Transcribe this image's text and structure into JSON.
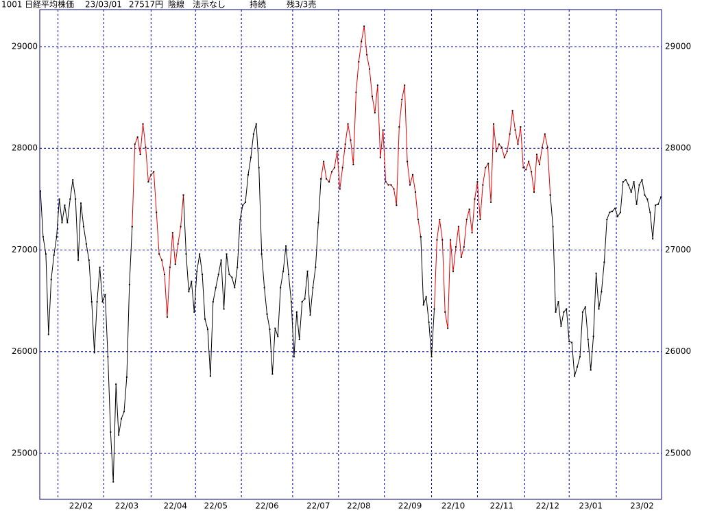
{
  "chart_data": {
    "type": "line",
    "header": [
      "1001",
      "日経平均株価",
      "23/03/01",
      "27517円",
      "陰線",
      "法示なし",
      "持続",
      "残3/3売"
    ],
    "categories": [
      null,
      null,
      null,
      null,
      null,
      null,
      null,
      null,
      null,
      null,
      null,
      null,
      null,
      null,
      null,
      "22/02",
      null,
      null,
      null,
      null,
      null,
      null,
      null,
      null,
      null,
      null,
      null,
      null,
      null,
      null,
      null,
      null,
      "22/03",
      null,
      null,
      null,
      null,
      null,
      null,
      null,
      null,
      null,
      null,
      null,
      null,
      null,
      null,
      null,
      null,
      null,
      "22/04",
      null,
      null,
      null,
      null,
      null,
      null,
      null,
      null,
      null,
      null,
      null,
      null,
      null,
      null,
      "22/05",
      null,
      null,
      null,
      null,
      null,
      null,
      null,
      null,
      null,
      null,
      null,
      null,
      null,
      null,
      null,
      null,
      null,
      null,
      "22/06",
      null,
      null,
      null,
      null,
      null,
      null,
      null,
      null,
      null,
      null,
      null,
      null,
      null,
      null,
      null,
      null,
      null,
      null,
      "22/07",
      null,
      null,
      null,
      null,
      null,
      null,
      null,
      null,
      null,
      null,
      null,
      null,
      null,
      null,
      "22/08",
      null,
      null,
      null,
      null,
      null,
      null,
      null,
      null,
      null,
      null,
      null,
      null,
      null,
      null,
      null,
      null,
      null,
      null,
      "22/09",
      null,
      null,
      null,
      null,
      null,
      null,
      null,
      null,
      null,
      null,
      null,
      null,
      null,
      null,
      null,
      "22/10",
      null,
      null,
      null,
      null,
      null,
      null,
      null,
      null,
      null,
      null,
      null,
      null,
      null,
      null,
      null,
      null,
      null,
      "22/11",
      null,
      null,
      null,
      null,
      null,
      null,
      null,
      null,
      null,
      null,
      null,
      null,
      null,
      null,
      null,
      null,
      "22/12",
      null,
      null,
      null,
      null,
      null,
      null,
      null,
      null,
      null,
      null,
      null,
      null,
      null,
      null,
      null,
      "23/01",
      null,
      null,
      null,
      null,
      null,
      null,
      null,
      null,
      null,
      null,
      null,
      null,
      null,
      null,
      null,
      null,
      null,
      null,
      "23/02",
      null,
      null,
      null,
      null,
      null,
      null,
      null
    ],
    "series": [
      {
        "color": "#000000",
        "values": [
          27580,
          27130,
          26960,
          26170,
          26710,
          26950,
          27130,
          27500,
          27270,
          27440,
          27270,
          27500,
          27690,
          27500,
          26900,
          27460,
          27230,
          27060,
          26900,
          26490,
          25990,
          26490,
          26830,
          26490,
          26560,
          25950,
          25210,
          24720,
          25680,
          25180,
          25340,
          25410,
          25750,
          26660,
          27230,
          null,
          null,
          null,
          null,
          null,
          null,
          null,
          null,
          null,
          null,
          null,
          null,
          null,
          null,
          null,
          null,
          null,
          null,
          27540,
          26960,
          26590,
          26690,
          26390,
          26790,
          26960,
          26760,
          26320,
          26220,
          25760,
          26490,
          26630,
          26760,
          26900,
          26420,
          26960,
          26760,
          26730,
          26630,
          26830,
          27300,
          27440,
          27470,
          27740,
          27910,
          28140,
          28240,
          27810,
          26960,
          26630,
          26370,
          26220,
          25780,
          26230,
          26150,
          26630,
          26790,
          27040,
          26760,
          26490,
          25950,
          26390,
          26120,
          26490,
          26520,
          26790,
          26360,
          26630,
          26830,
          27270,
          27700,
          null,
          null,
          null,
          null,
          null,
          null,
          null,
          null,
          null,
          null,
          null,
          null,
          null,
          null,
          null,
          null,
          null,
          null,
          null,
          null,
          null,
          null,
          null,
          null,
          null,
          null,
          null,
          null,
          null,
          null,
          null,
          null,
          null,
          null,
          null,
          null,
          27130,
          26460,
          26540,
          26290,
          25950,
          26420,
          null,
          null,
          null,
          null,
          null,
          null,
          null,
          null,
          null,
          null,
          null,
          null,
          null,
          null,
          null,
          null,
          null,
          null,
          null,
          null,
          null,
          null,
          null,
          null,
          null,
          null,
          null,
          null,
          null,
          null,
          null,
          null,
          null,
          null,
          null,
          null,
          null,
          null,
          null,
          null,
          null,
          null,
          27540,
          27230,
          26390,
          26490,
          26250,
          26390,
          26420,
          26100,
          26090,
          25760,
          25850,
          25950,
          26390,
          26440,
          26120,
          25820,
          26150,
          26770,
          26420,
          26590,
          26880,
          27300,
          27370,
          27380,
          27410,
          27330,
          27370,
          27670,
          27690,
          27640,
          27570,
          27670,
          27450,
          27640,
          27690,
          27540,
          27500,
          27370,
          27110,
          27440,
          27450,
          27520
        ]
      },
      {
        "color": "#e00000",
        "values": [
          null,
          null,
          null,
          null,
          null,
          null,
          null,
          null,
          null,
          null,
          null,
          null,
          null,
          null,
          null,
          null,
          null,
          null,
          null,
          null,
          null,
          null,
          null,
          null,
          null,
          null,
          null,
          null,
          null,
          null,
          null,
          null,
          null,
          null,
          27230,
          28040,
          28110,
          27940,
          28240,
          28010,
          27670,
          27740,
          27770,
          27370,
          26960,
          26900,
          26760,
          26340,
          26830,
          27170,
          26860,
          27060,
          27230,
          27540,
          null,
          null,
          null,
          null,
          null,
          null,
          null,
          null,
          null,
          null,
          null,
          null,
          null,
          null,
          null,
          null,
          null,
          null,
          null,
          null,
          null,
          null,
          null,
          null,
          null,
          null,
          null,
          null,
          null,
          null,
          null,
          null,
          null,
          null,
          null,
          null,
          null,
          null,
          null,
          null,
          null,
          null,
          null,
          null,
          null,
          null,
          null,
          null,
          null,
          null,
          27700,
          27870,
          27700,
          27670,
          27770,
          27810,
          27970,
          27600,
          27810,
          28040,
          28240,
          28080,
          27840,
          28550,
          28850,
          29050,
          29200,
          28920,
          28780,
          28510,
          28350,
          28620,
          27910,
          28180,
          27670,
          27640,
          27640,
          27600,
          27440,
          28210,
          28480,
          28620,
          27870,
          27640,
          27740,
          27570,
          27300,
          27130,
          null,
          null,
          null,
          null,
          26420,
          27100,
          27300,
          27100,
          26390,
          26230,
          27100,
          26790,
          27030,
          27230,
          26930,
          27030,
          27300,
          27400,
          27170,
          27500,
          27670,
          27300,
          27640,
          27810,
          27850,
          27470,
          28240,
          27970,
          28040,
          28010,
          27910,
          27970,
          28140,
          28370,
          28180,
          28040,
          28210,
          27810,
          27790,
          27870,
          27770,
          27570,
          27940,
          27840,
          28010,
          28140,
          28010,
          27540,
          null,
          null,
          null,
          null,
          null,
          null,
          null,
          null,
          null,
          null,
          null,
          null,
          null,
          null,
          null,
          null,
          null,
          null,
          null,
          null,
          null,
          null,
          null,
          null,
          null,
          null,
          null,
          null,
          null,
          null,
          null,
          null,
          null,
          null,
          null,
          null,
          null,
          null,
          null,
          null,
          null
        ]
      }
    ],
    "ylim": [
      24548,
      29364
    ],
    "yticks": [
      25000,
      26000,
      27000,
      28000,
      29000
    ],
    "grid": true,
    "grid_color": "#0000c0",
    "frame_color": "#000080"
  }
}
